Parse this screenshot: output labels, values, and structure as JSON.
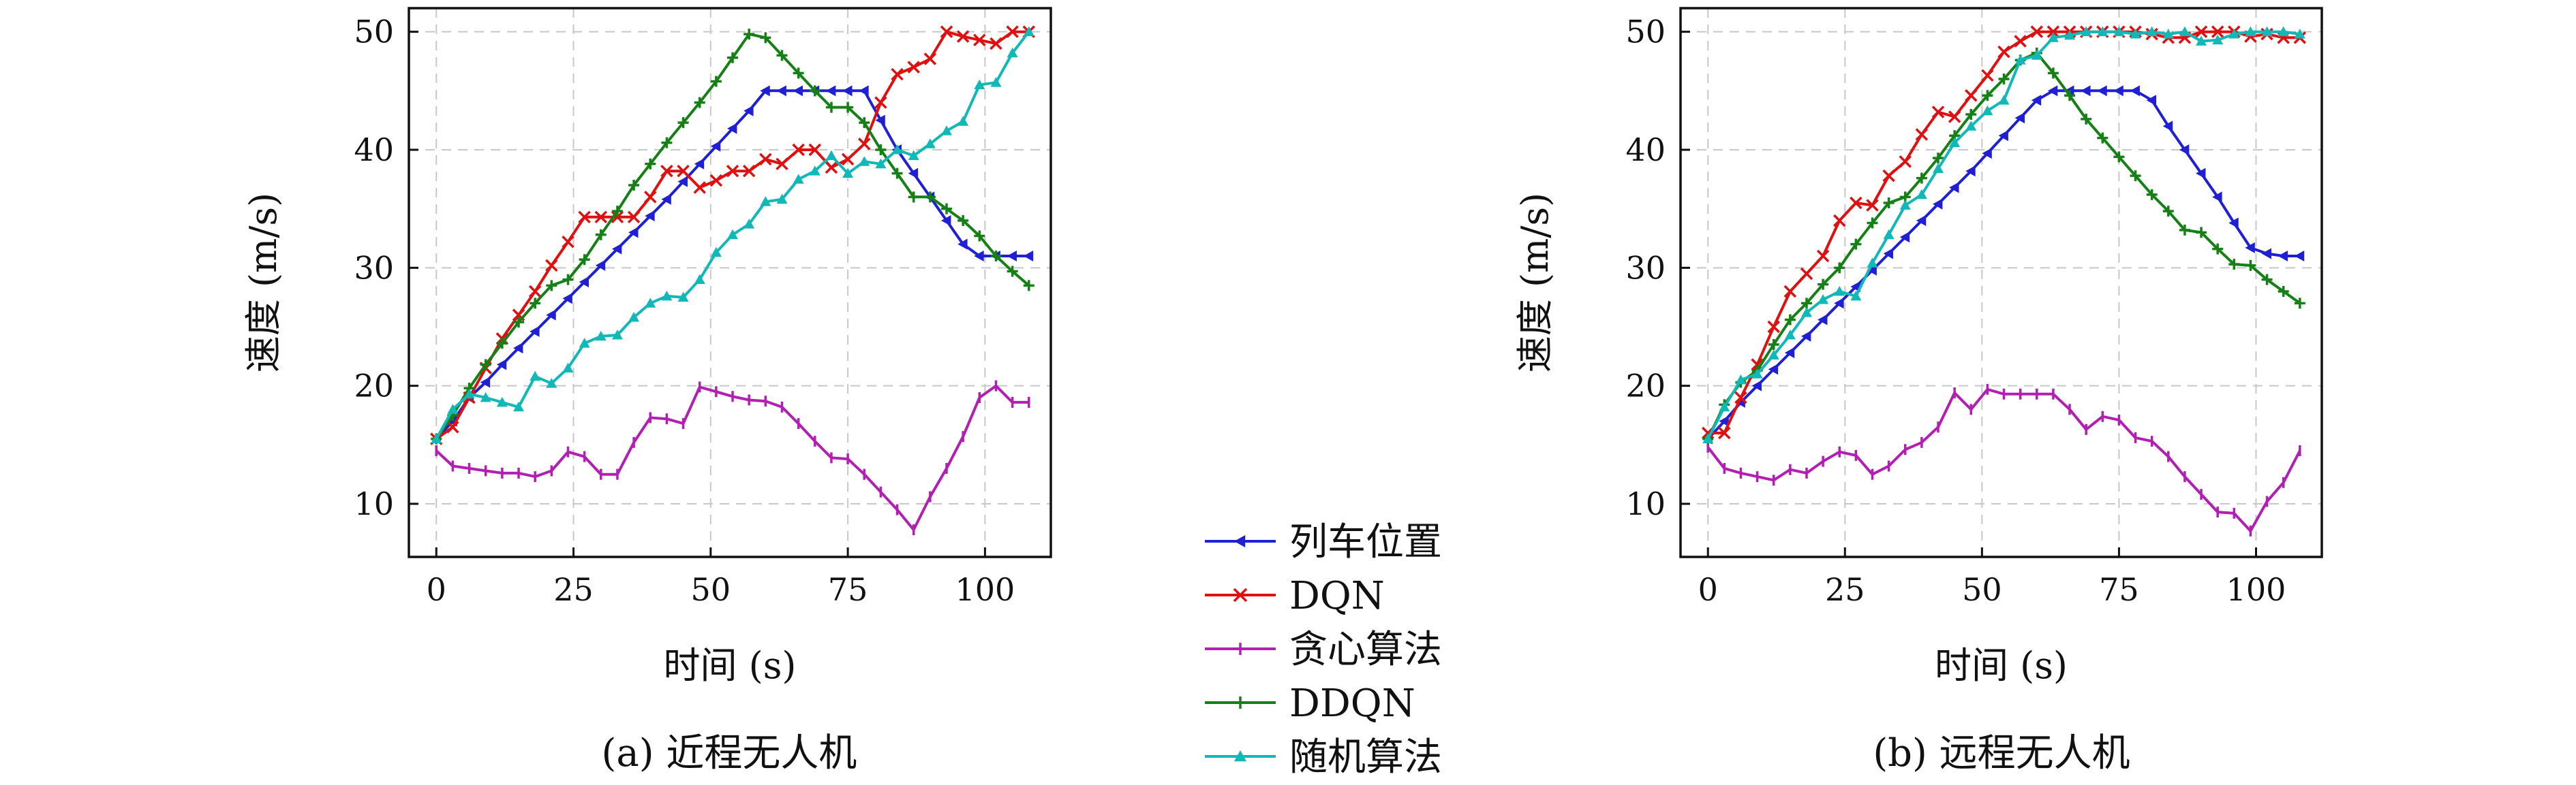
{
  "legend": {
    "entries": [
      {
        "name": "列车位置",
        "color": "#1f1fd6",
        "marker": "tri-left"
      },
      {
        "name": "DQN",
        "color": "#e01010",
        "marker": "x"
      },
      {
        "name": "贪心算法",
        "color": "#b21fb2",
        "marker": "vbar"
      },
      {
        "name": "DDQN",
        "color": "#158015",
        "marker": "plus"
      },
      {
        "name": "随机算法",
        "color": "#10b8b8",
        "marker": "tri-up"
      }
    ]
  },
  "chart_data": [
    {
      "type": "line",
      "caption": "(a) 近程无人机",
      "xlabel": "时间 (s)",
      "ylabel": "速度 (m/s)",
      "xlim": [
        -5,
        112
      ],
      "ylim": [
        5.5,
        52
      ],
      "xticks": [
        0,
        25,
        50,
        75,
        100
      ],
      "yticks": [
        10,
        20,
        30,
        40,
        50
      ],
      "grid": true,
      "series": [
        {
          "name": "列车位置",
          "color": "#1f1fd6",
          "marker": "tri-left",
          "x": [
            0,
            3,
            6,
            9,
            12,
            15,
            18,
            21,
            24,
            27,
            30,
            33,
            36,
            39,
            42,
            45,
            48,
            51,
            54,
            57,
            60,
            63,
            66,
            69,
            72,
            75,
            78,
            81,
            84,
            87,
            90,
            93,
            96,
            99,
            102,
            105,
            108
          ],
          "y": [
            15.5,
            17,
            19,
            20.3,
            21.8,
            23.2,
            24.6,
            26,
            27.4,
            28.8,
            30.2,
            31.6,
            33,
            34.4,
            35.8,
            37.3,
            38.8,
            40.3,
            41.8,
            43.3,
            45,
            45,
            45,
            45,
            45,
            45,
            45,
            42.5,
            40,
            38,
            36,
            34,
            32,
            31,
            31,
            31,
            31
          ]
        },
        {
          "name": "DQN",
          "color": "#e01010",
          "marker": "x",
          "x": [
            0,
            3,
            6,
            9,
            12,
            15,
            18,
            21,
            24,
            27,
            30,
            33,
            36,
            39,
            42,
            45,
            48,
            51,
            54,
            57,
            60,
            63,
            66,
            69,
            72,
            75,
            78,
            81,
            84,
            87,
            90,
            93,
            96,
            99,
            102,
            105,
            108
          ],
          "y": [
            15.5,
            16.5,
            19,
            21.5,
            24,
            26,
            28,
            30.2,
            32.2,
            34.3,
            34.3,
            34.3,
            34.3,
            36,
            38.2,
            38.2,
            36.8,
            37.4,
            38.2,
            38.2,
            39.2,
            38.8,
            40,
            40,
            38.5,
            39.2,
            40.5,
            44,
            46.4,
            47,
            47.7,
            50,
            49.6,
            49.3,
            49,
            50,
            50
          ]
        },
        {
          "name": "贪心算法",
          "color": "#b21fb2",
          "marker": "vbar",
          "x": [
            0,
            3,
            6,
            9,
            12,
            15,
            18,
            21,
            24,
            27,
            30,
            33,
            36,
            39,
            42,
            45,
            48,
            51,
            54,
            57,
            60,
            63,
            66,
            69,
            72,
            75,
            78,
            81,
            84,
            87,
            90,
            93,
            96,
            99,
            102,
            105,
            108
          ],
          "y": [
            14.5,
            13.2,
            13,
            12.8,
            12.6,
            12.6,
            12.3,
            12.8,
            14.4,
            14,
            12.5,
            12.5,
            15.2,
            17.3,
            17.2,
            16.8,
            19.9,
            19.5,
            19.1,
            18.8,
            18.7,
            18.2,
            16.8,
            15.3,
            13.9,
            13.8,
            12.5,
            11,
            9.5,
            7.8,
            10.6,
            13,
            15.7,
            19,
            20,
            18.6,
            18.6
          ]
        },
        {
          "name": "DDQN",
          "color": "#158015",
          "marker": "plus",
          "x": [
            0,
            3,
            6,
            9,
            12,
            15,
            18,
            21,
            24,
            27,
            30,
            33,
            36,
            39,
            42,
            45,
            48,
            51,
            54,
            57,
            60,
            63,
            66,
            69,
            72,
            75,
            78,
            81,
            84,
            87,
            90,
            93,
            96,
            99,
            102,
            105,
            108
          ],
          "y": [
            15.5,
            17.5,
            19.8,
            21.8,
            23.6,
            25.4,
            27,
            28.5,
            29,
            30.7,
            32.8,
            34.8,
            37,
            38.8,
            40.6,
            42.3,
            44,
            45.8,
            47.8,
            49.8,
            49.5,
            48,
            46.5,
            45,
            43.6,
            43.6,
            42.3,
            40,
            38,
            36,
            36,
            35,
            34,
            32.7,
            31,
            29.7,
            28.5
          ]
        },
        {
          "name": "随机算法",
          "color": "#10b8b8",
          "marker": "tri-up",
          "x": [
            0,
            3,
            6,
            9,
            12,
            15,
            18,
            21,
            24,
            27,
            30,
            33,
            36,
            39,
            42,
            45,
            48,
            51,
            54,
            57,
            60,
            63,
            66,
            69,
            72,
            75,
            78,
            81,
            84,
            87,
            90,
            93,
            96,
            99,
            102,
            105,
            108
          ],
          "y": [
            15.5,
            18,
            19.3,
            19,
            18.6,
            18.2,
            20.8,
            20.2,
            21.5,
            23.6,
            24.2,
            24.3,
            25.8,
            27,
            27.6,
            27.5,
            29,
            31.3,
            32.8,
            33.7,
            35.6,
            35.8,
            37.5,
            38.2,
            39.5,
            38,
            39,
            38.8,
            40,
            39.5,
            40.5,
            41.6,
            42.4,
            45.5,
            45.7,
            48.2,
            50
          ]
        }
      ]
    },
    {
      "type": "line",
      "caption": "(b) 远程无人机",
      "xlabel": "时间 (s)",
      "ylabel": "速度 (m/s)",
      "xlim": [
        -5,
        112
      ],
      "ylim": [
        5.5,
        52
      ],
      "xticks": [
        0,
        25,
        50,
        75,
        100
      ],
      "yticks": [
        10,
        20,
        30,
        40,
        50
      ],
      "grid": true,
      "series": [
        {
          "name": "列车位置",
          "color": "#1f1fd6",
          "marker": "tri-left",
          "x": [
            0,
            3,
            6,
            9,
            12,
            15,
            18,
            21,
            24,
            27,
            30,
            33,
            36,
            39,
            42,
            45,
            48,
            51,
            54,
            57,
            60,
            63,
            66,
            69,
            72,
            75,
            78,
            81,
            84,
            87,
            90,
            93,
            96,
            99,
            102,
            105,
            108
          ],
          "y": [
            15.5,
            17,
            18.6,
            20,
            21.4,
            22.8,
            24.2,
            25.6,
            27,
            28.4,
            29.8,
            31.2,
            32.6,
            34,
            35.4,
            36.8,
            38.2,
            39.7,
            41.2,
            42.7,
            44.2,
            45,
            45,
            45,
            45,
            45,
            45,
            44.2,
            42,
            40,
            38,
            36,
            33.8,
            31.7,
            31.2,
            31,
            31
          ]
        },
        {
          "name": "DQN",
          "color": "#e01010",
          "marker": "x",
          "x": [
            0,
            3,
            6,
            9,
            12,
            15,
            18,
            21,
            24,
            27,
            30,
            33,
            36,
            39,
            42,
            45,
            48,
            51,
            54,
            57,
            60,
            63,
            66,
            69,
            72,
            75,
            78,
            81,
            84,
            87,
            90,
            93,
            96,
            99,
            102,
            105,
            108
          ],
          "y": [
            16,
            16,
            19,
            21.8,
            25,
            28,
            29.5,
            31,
            34,
            35.5,
            35.3,
            37.8,
            39,
            41.3,
            43.2,
            42.8,
            44.6,
            46.3,
            48.3,
            49.2,
            50,
            50,
            50,
            50,
            50,
            50,
            50,
            49.8,
            49.5,
            49.5,
            50,
            50,
            50,
            49.6,
            49.8,
            49.5,
            49.5
          ]
        },
        {
          "name": "贪心算法",
          "color": "#b21fb2",
          "marker": "vbar",
          "x": [
            0,
            3,
            6,
            9,
            12,
            15,
            18,
            21,
            24,
            27,
            30,
            33,
            36,
            39,
            42,
            45,
            48,
            51,
            54,
            57,
            60,
            63,
            66,
            69,
            72,
            75,
            78,
            81,
            84,
            87,
            90,
            93,
            96,
            99,
            102,
            105,
            108
          ],
          "y": [
            14.8,
            13,
            12.6,
            12.3,
            12,
            12.9,
            12.6,
            13.6,
            14.4,
            14.1,
            12.5,
            13.2,
            14.6,
            15.2,
            16.5,
            19.4,
            18,
            19.7,
            19.3,
            19.3,
            19.3,
            19.3,
            18,
            16.3,
            17.4,
            17.1,
            15.6,
            15.3,
            14,
            12.3,
            10.8,
            9.3,
            9.2,
            7.7,
            10.2,
            11.8,
            14.5
          ]
        },
        {
          "name": "DDQN",
          "color": "#158015",
          "marker": "plus",
          "x": [
            0,
            3,
            6,
            9,
            12,
            15,
            18,
            21,
            24,
            27,
            30,
            33,
            36,
            39,
            42,
            45,
            48,
            51,
            54,
            57,
            60,
            63,
            66,
            69,
            72,
            75,
            78,
            81,
            84,
            87,
            90,
            93,
            96,
            99,
            102,
            105,
            108
          ],
          "y": [
            15.5,
            18.4,
            20.3,
            21.3,
            23.5,
            25.6,
            27,
            28.6,
            30,
            32,
            33.8,
            35.5,
            36,
            37.6,
            39.3,
            41.2,
            43,
            44.6,
            46,
            47.6,
            48.2,
            46.5,
            44.6,
            42.6,
            41,
            39.4,
            37.8,
            36.2,
            34.8,
            33.2,
            33,
            31.6,
            30.3,
            30.2,
            29,
            28,
            27
          ]
        },
        {
          "name": "随机算法",
          "color": "#10b8b8",
          "marker": "tri-up",
          "x": [
            0,
            3,
            6,
            9,
            12,
            15,
            18,
            21,
            24,
            27,
            30,
            33,
            36,
            39,
            42,
            45,
            48,
            51,
            54,
            57,
            60,
            63,
            66,
            69,
            72,
            75,
            78,
            81,
            84,
            87,
            90,
            93,
            96,
            99,
            102,
            105,
            108
          ],
          "y": [
            15.5,
            18.2,
            20.5,
            21,
            22.6,
            24.3,
            26.2,
            27.3,
            28,
            27.6,
            30.4,
            32.8,
            35.3,
            36.2,
            38.4,
            40.6,
            42,
            43.3,
            44.2,
            47.6,
            48,
            49.5,
            49.7,
            50,
            50,
            50,
            49.8,
            50,
            49.8,
            50,
            49.2,
            49.3,
            49.8,
            50,
            50,
            50,
            49.8
          ]
        }
      ]
    }
  ]
}
